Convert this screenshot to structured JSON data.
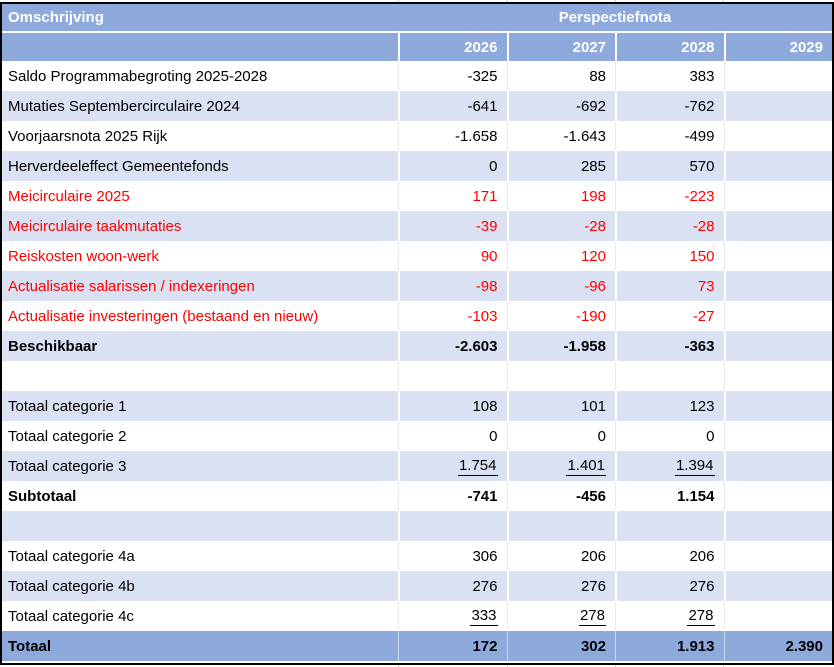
{
  "header": {
    "description_label": "Omschrijving",
    "group_label": "Perspectiefnota",
    "years": [
      "2026",
      "2027",
      "2028",
      "2029"
    ]
  },
  "colors": {
    "header_blue": "#8EA9DB",
    "band_blue": "#D9E1F2",
    "highlight_red": "#FF0000",
    "text_black": "#000000",
    "border_black": "#000000"
  },
  "rows": [
    {
      "label": "Saldo Programmabegroting 2025-2028",
      "values": [
        "-325",
        "88",
        "383",
        ""
      ],
      "band": false,
      "style": "normal",
      "underline": false
    },
    {
      "label": "Mutaties Septembercirculaire 2024",
      "values": [
        "-641",
        "-692",
        "-762",
        ""
      ],
      "band": true,
      "style": "normal",
      "underline": false
    },
    {
      "label": "Voorjaarsnota 2025 Rijk",
      "values": [
        "-1.658",
        "-1.643",
        "-499",
        ""
      ],
      "band": false,
      "style": "normal",
      "underline": false
    },
    {
      "label": "Herverdeeleffect Gemeentefonds",
      "values": [
        "0",
        "285",
        "570",
        ""
      ],
      "band": true,
      "style": "normal",
      "underline": false
    },
    {
      "label": "Meicirculaire 2025",
      "values": [
        "171",
        "198",
        "-223",
        ""
      ],
      "band": false,
      "style": "red",
      "underline": false
    },
    {
      "label": "Meicirculaire taakmutaties",
      "values": [
        "-39",
        "-28",
        "-28",
        ""
      ],
      "band": true,
      "style": "red",
      "underline": false
    },
    {
      "label": "Reiskosten woon-werk",
      "values": [
        "90",
        "120",
        "150",
        ""
      ],
      "band": false,
      "style": "red",
      "underline": false
    },
    {
      "label": "Actualisatie salarissen / indexeringen",
      "values": [
        "-98",
        "-96",
        "73",
        ""
      ],
      "band": true,
      "style": "red",
      "underline": false
    },
    {
      "label": "Actualisatie investeringen (bestaand en nieuw)",
      "values": [
        "-103",
        "-190",
        "-27",
        ""
      ],
      "band": false,
      "style": "red",
      "underline": false
    },
    {
      "label": "Beschikbaar",
      "values": [
        "-2.603",
        "-1.958",
        "-363",
        ""
      ],
      "band": true,
      "style": "bold",
      "underline": false
    },
    {
      "label": "",
      "values": [
        "",
        "",
        "",
        ""
      ],
      "band": false,
      "style": "normal",
      "underline": false
    },
    {
      "label": "Totaal categorie 1",
      "values": [
        "108",
        "101",
        "123",
        ""
      ],
      "band": true,
      "style": "normal",
      "underline": false
    },
    {
      "label": "Totaal categorie 2",
      "values": [
        "0",
        "0",
        "0",
        ""
      ],
      "band": false,
      "style": "normal",
      "underline": false
    },
    {
      "label": "Totaal categorie 3",
      "values": [
        "1.754",
        "1.401",
        "1.394",
        ""
      ],
      "band": true,
      "style": "normal",
      "underline": true
    },
    {
      "label": "Subtotaal",
      "values": [
        "-741",
        "-456",
        "1.154",
        ""
      ],
      "band": false,
      "style": "bold",
      "underline": false
    },
    {
      "label": "",
      "values": [
        "",
        "",
        "",
        ""
      ],
      "band": true,
      "style": "normal",
      "underline": false
    },
    {
      "label": "Totaal categorie 4a",
      "values": [
        "306",
        "206",
        "206",
        ""
      ],
      "band": false,
      "style": "normal",
      "underline": false
    },
    {
      "label": "Totaal categorie 4b",
      "values": [
        "276",
        "276",
        "276",
        ""
      ],
      "band": true,
      "style": "normal",
      "underline": false
    },
    {
      "label": "Totaal categorie 4c",
      "values": [
        "333",
        "278",
        "278",
        ""
      ],
      "band": false,
      "style": "normal",
      "underline": true
    },
    {
      "label": "Totaal",
      "values": [
        "172",
        "302",
        "1.913",
        "2.390"
      ],
      "band": false,
      "style": "total",
      "underline": false
    }
  ]
}
